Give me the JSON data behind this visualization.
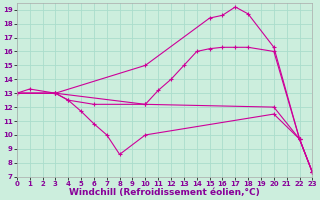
{
  "bg_color": "#cceedd",
  "line_color": "#cc0099",
  "grid_color": "#aaddcc",
  "xlabel": "Windchill (Refroidissement éolien,°C)",
  "xlabel_color": "#880099",
  "xlim": [
    0,
    23
  ],
  "ylim": [
    7,
    19.5
  ],
  "xticks": [
    0,
    1,
    2,
    3,
    4,
    5,
    6,
    7,
    8,
    9,
    10,
    11,
    12,
    13,
    14,
    15,
    16,
    17,
    18,
    19,
    20,
    21,
    22,
    23
  ],
  "yticks": [
    7,
    8,
    9,
    10,
    11,
    12,
    13,
    14,
    15,
    16,
    17,
    18,
    19
  ],
  "lines": [
    {
      "x": [
        0,
        1,
        3,
        10,
        15,
        16,
        17,
        18,
        20,
        22,
        23
      ],
      "y": [
        13,
        13.3,
        13,
        15,
        18.4,
        18.6,
        19.2,
        18.7,
        16.3,
        9.7,
        7.3
      ]
    },
    {
      "x": [
        0,
        3,
        4,
        5,
        6,
        7,
        8,
        10,
        20,
        22,
        23
      ],
      "y": [
        13,
        13,
        12.5,
        11.7,
        10.8,
        10,
        8.6,
        10,
        11.5,
        9.7,
        7.3
      ]
    },
    {
      "x": [
        0,
        3,
        10,
        11,
        12,
        13,
        14,
        15,
        16,
        17,
        18,
        20,
        22,
        23
      ],
      "y": [
        13,
        13,
        12.2,
        13.2,
        14.0,
        15.0,
        16.0,
        16.2,
        16.3,
        16.3,
        16.3,
        16.0,
        9.7,
        7.3
      ]
    },
    {
      "x": [
        0,
        3,
        4,
        6,
        10,
        20,
        22,
        23
      ],
      "y": [
        13,
        13,
        12.5,
        12.2,
        12.2,
        12.0,
        9.7,
        7.3
      ]
    }
  ]
}
